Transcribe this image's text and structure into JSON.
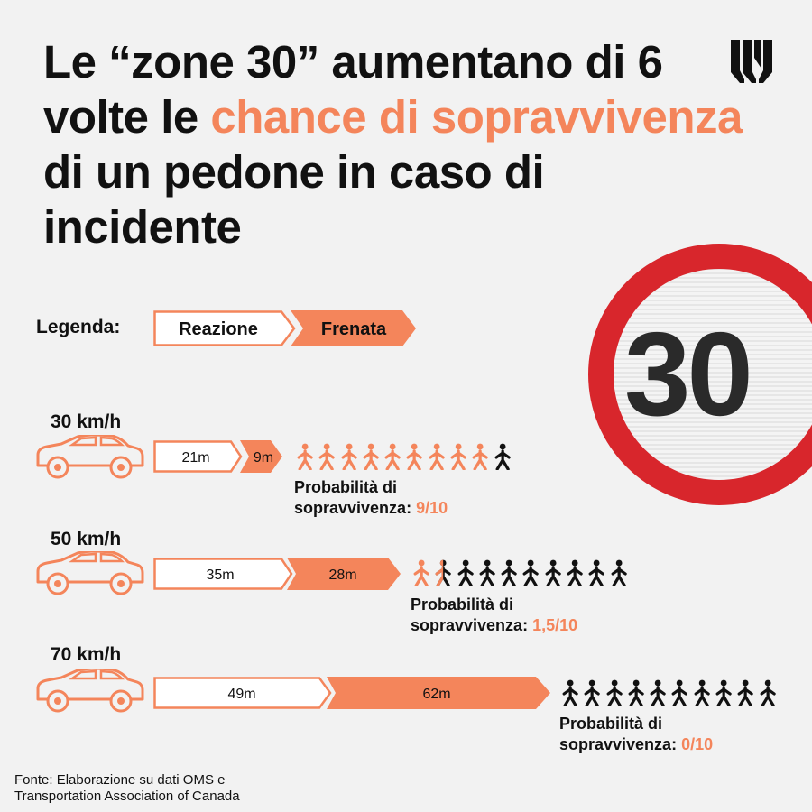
{
  "title": {
    "before": "Le “zone 30” aumentano di 6 volte le ",
    "highlight": "chance di sopravvivenza",
    "after": " di un pedone in caso di incidente"
  },
  "sign_number": "30",
  "legend": {
    "label": "Legenda:",
    "reaction": "Reazione",
    "braking": "Frenata"
  },
  "colors": {
    "accent": "#f4855b",
    "text": "#111111",
    "background": "#f2f2f2",
    "sign_red": "#d8262c"
  },
  "chart_data": {
    "type": "bar",
    "orientation": "horizontal",
    "stacked": true,
    "unit": "m",
    "categories": [
      "30 km/h",
      "50 km/h",
      "70 km/h"
    ],
    "series": [
      {
        "name": "Reazione",
        "values": [
          21,
          35,
          49
        ],
        "labels": [
          "21m",
          "35m",
          "49m"
        ]
      },
      {
        "name": "Frenata",
        "values": [
          9,
          28,
          62
        ],
        "labels": [
          "9m",
          "28m",
          "62m"
        ]
      }
    ],
    "survival": {
      "caption": "Probabilità di sopravvivenza:",
      "labels": [
        "9/10",
        "1,5/10",
        "0/10"
      ],
      "survivors_of_10": [
        9,
        1.5,
        0
      ]
    }
  },
  "source": {
    "line1": "Fonte: Elaborazione su dati OMS e",
    "line2": "Transportation Association of Canada"
  }
}
